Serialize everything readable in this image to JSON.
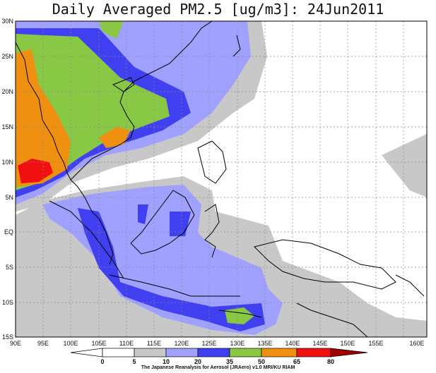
{
  "title": "Daily Averaged PM2.5 [ug/m3]: 24Jun2011",
  "credit": "The Japanese Reanalysis for Aerosol (JRAero) v1.0 MRI/KU RIAM",
  "lat_labels": [
    "30N",
    "25N",
    "20N",
    "15N",
    "10N",
    "5N",
    "EQ",
    "5S",
    "10S",
    "15S"
  ],
  "lon_labels": [
    "90E",
    "95E",
    "100E",
    "105E",
    "110E",
    "115E",
    "120E",
    "125E",
    "130E",
    "135E",
    "140E",
    "145E",
    "150E",
    "155E",
    "160E"
  ],
  "legend": {
    "ticks": [
      "0",
      "5",
      "10",
      "20",
      "35",
      "50",
      "65",
      "80"
    ],
    "colors": [
      "#ffffff",
      "#c8c8c8",
      "#a0a0ff",
      "#4040f0",
      "#88c844",
      "#f09010",
      "#f01010",
      "#a00000"
    ]
  }
}
